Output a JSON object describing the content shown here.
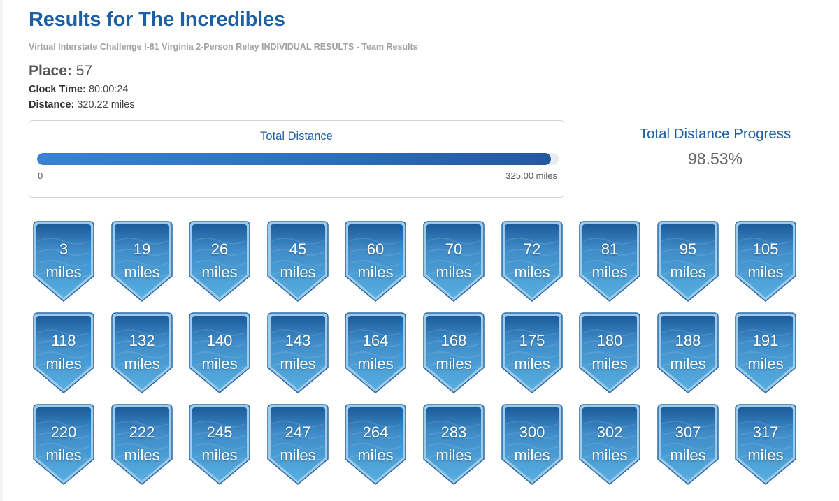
{
  "header": {
    "title": "Results for The Incredibles",
    "subtitle": "Virtual Interstate Challenge I-81 Virginia 2-Person Relay INDIVIDUAL RESULTS - Team Results"
  },
  "summary": {
    "place_label": "Place:",
    "place_value": "57",
    "clock_label": "Clock Time:",
    "clock_value": "80:00:24",
    "distance_label": "Distance:",
    "distance_value": "320.22 miles"
  },
  "progress_card": {
    "title": "Total Distance",
    "min_label": "0",
    "max_label": "325.00 miles",
    "fraction": 0.9853
  },
  "progress_summary": {
    "heading": "Total Distance Progress",
    "value": "98.53%"
  },
  "colors": {
    "accent": "#1e5fa3",
    "badge_dark": "#1c5b9b",
    "badge_light": "#56aee0"
  },
  "badges": {
    "unit": "miles",
    "items": [
      {
        "value": "3"
      },
      {
        "value": "19"
      },
      {
        "value": "26"
      },
      {
        "value": "45"
      },
      {
        "value": "60"
      },
      {
        "value": "70"
      },
      {
        "value": "72"
      },
      {
        "value": "81"
      },
      {
        "value": "95"
      },
      {
        "value": "105"
      },
      {
        "value": "118"
      },
      {
        "value": "132"
      },
      {
        "value": "140"
      },
      {
        "value": "143"
      },
      {
        "value": "164"
      },
      {
        "value": "168"
      },
      {
        "value": "175"
      },
      {
        "value": "180"
      },
      {
        "value": "188"
      },
      {
        "value": "191"
      },
      {
        "value": "220"
      },
      {
        "value": "222"
      },
      {
        "value": "245"
      },
      {
        "value": "247"
      },
      {
        "value": "264"
      },
      {
        "value": "283"
      },
      {
        "value": "300"
      },
      {
        "value": "302"
      },
      {
        "value": "307"
      },
      {
        "value": "317"
      }
    ]
  }
}
